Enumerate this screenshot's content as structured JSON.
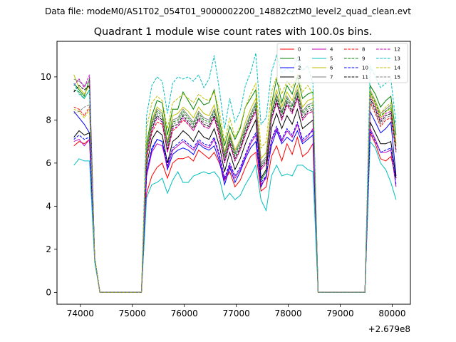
{
  "chart_data": {
    "type": "line",
    "suptitle": "Data file: modeM0/AS1T02_054T01_9000002200_14882cztM0_level2_quad_clean.evt",
    "title": "Quadrant 1 module wise count rates with 100.0s bins.",
    "offset_label": "+2.679e8",
    "xlabel": "",
    "ylabel": "",
    "xlim": [
      73550,
      80350
    ],
    "ylim": [
      -0.55,
      11.65
    ],
    "x_ticks": [
      74000,
      75000,
      76000,
      77000,
      78000,
      79000,
      80000
    ],
    "y_ticks": [
      0,
      2,
      4,
      6,
      8,
      10
    ],
    "legend_position": "top-right",
    "grid": false,
    "x": [
      73875,
      73975,
      74075,
      74175,
      74275,
      74375,
      75175,
      75275,
      75375,
      75475,
      75575,
      75675,
      75775,
      75875,
      75975,
      76075,
      76175,
      76275,
      76375,
      76475,
      76575,
      76675,
      76775,
      76875,
      76975,
      77075,
      77175,
      77275,
      77375,
      77475,
      77575,
      77675,
      77775,
      77875,
      77975,
      78075,
      78175,
      78275,
      78375,
      78475,
      78575,
      78675,
      79475,
      79575,
      79675,
      79775,
      79875,
      79975,
      80075
    ],
    "series": [
      {
        "name": "0",
        "color": "#ff0000",
        "dash": "solid",
        "values": [
          6.8,
          7.0,
          6.9,
          7.1,
          1.6,
          0,
          0,
          4.6,
          5.4,
          5.8,
          6.0,
          5.3,
          6.0,
          6.2,
          6.2,
          6.3,
          6.1,
          6.6,
          6.4,
          6.2,
          6.5,
          6.0,
          5.2,
          5.6,
          4.9,
          5.2,
          5.8,
          6.3,
          6.5,
          4.7,
          4.9,
          6.3,
          6.8,
          6.1,
          6.9,
          6.4,
          7.2,
          6.3,
          6.5,
          6.9,
          0,
          0,
          0,
          7.4,
          6.9,
          6.2,
          6.1,
          6.3,
          5.3
        ]
      },
      {
        "name": "1",
        "color": "#008000",
        "dash": "solid",
        "values": [
          9.7,
          9.4,
          9.1,
          9.9,
          1.6,
          0,
          0,
          6.9,
          8.2,
          8.9,
          8.8,
          7.3,
          8.5,
          8.5,
          9.3,
          8.9,
          8.5,
          9.0,
          8.7,
          8.8,
          9.4,
          8.0,
          6.8,
          7.7,
          7.1,
          7.6,
          8.6,
          9.0,
          9.4,
          5.2,
          5.6,
          8.7,
          9.9,
          8.8,
          9.6,
          9.2,
          10.0,
          9.0,
          9.2,
          9.3,
          0,
          0,
          0,
          9.6,
          9.2,
          8.6,
          8.9,
          9.1,
          7.3
        ]
      },
      {
        "name": "2",
        "color": "#0000ff",
        "dash": "solid",
        "values": [
          8.4,
          8.1,
          7.8,
          7.4,
          1.6,
          0,
          0,
          5.6,
          6.6,
          7.1,
          7.0,
          5.7,
          6.4,
          6.6,
          6.7,
          6.6,
          6.4,
          6.9,
          6.7,
          6.6,
          6.8,
          6.1,
          5.0,
          5.8,
          5.1,
          5.6,
          6.2,
          6.7,
          7.0,
          4.9,
          5.4,
          6.8,
          7.5,
          6.9,
          7.2,
          7.0,
          7.5,
          6.9,
          7.1,
          7.3,
          0,
          0,
          0,
          8.4,
          7.9,
          7.4,
          7.6,
          7.9,
          5.4
        ]
      },
      {
        "name": "3",
        "color": "#000000",
        "dash": "solid",
        "values": [
          7.2,
          7.5,
          7.3,
          7.4,
          1.6,
          0,
          0,
          5.9,
          7.1,
          7.5,
          7.3,
          6.0,
          7.0,
          7.2,
          7.5,
          7.3,
          7.0,
          7.5,
          7.2,
          7.1,
          7.6,
          6.8,
          5.6,
          6.5,
          5.7,
          6.2,
          6.9,
          7.5,
          8.0,
          5.3,
          5.7,
          7.6,
          8.3,
          7.6,
          8.2,
          7.8,
          8.5,
          7.6,
          7.8,
          8.0,
          0,
          0,
          0,
          7.9,
          7.4,
          6.9,
          6.9,
          7.0,
          5.3
        ]
      },
      {
        "name": "4",
        "color": "#bf00bf",
        "dash": "solid",
        "values": [
          7.0,
          7.1,
          6.8,
          7.1,
          1.6,
          0,
          0,
          5.4,
          6.5,
          6.9,
          6.8,
          5.8,
          6.6,
          6.8,
          7.0,
          6.8,
          6.6,
          7.0,
          6.8,
          6.7,
          7.1,
          6.3,
          5.2,
          5.9,
          5.3,
          5.7,
          6.3,
          6.9,
          7.3,
          5.0,
          5.3,
          7.0,
          7.6,
          7.0,
          7.5,
          7.2,
          7.8,
          7.0,
          7.2,
          7.6,
          0,
          0,
          0,
          7.6,
          7.1,
          6.5,
          6.5,
          6.6,
          4.9
        ]
      },
      {
        "name": "5",
        "color": "#00bfbf",
        "dash": "solid",
        "values": [
          5.9,
          6.2,
          6.1,
          6.1,
          1.4,
          0,
          0,
          4.4,
          5.0,
          5.1,
          5.3,
          4.6,
          5.2,
          5.6,
          5.1,
          5.1,
          5.4,
          5.5,
          5.6,
          5.5,
          5.6,
          5.3,
          4.3,
          4.6,
          4.3,
          4.5,
          5.0,
          5.4,
          5.9,
          4.3,
          3.8,
          5.4,
          5.9,
          5.4,
          5.5,
          5.4,
          5.9,
          5.9,
          5.7,
          5.6,
          0,
          0,
          0,
          7.0,
          6.7,
          6.0,
          5.7,
          5.1,
          4.3
        ]
      },
      {
        "name": "6",
        "color": "#bfbf00",
        "dash": "solid",
        "values": [
          10.1,
          9.5,
          9.2,
          9.6,
          1.6,
          0,
          0,
          6.8,
          8.0,
          8.6,
          8.4,
          7.0,
          8.2,
          8.3,
          8.6,
          8.4,
          8.1,
          8.6,
          8.3,
          8.2,
          8.7,
          7.8,
          6.5,
          7.4,
          6.6,
          7.1,
          7.9,
          8.5,
          9.0,
          6.2,
          6.5,
          8.6,
          9.4,
          8.6,
          9.3,
          8.9,
          9.6,
          8.6,
          8.9,
          9.0,
          0,
          0,
          0,
          9.2,
          8.7,
          8.1,
          8.4,
          8.5,
          6.8
        ]
      },
      {
        "name": "7",
        "color": "#808080",
        "dash": "solid",
        "values": [
          9.9,
          9.8,
          9.6,
          9.8,
          1.6,
          0,
          0,
          6.7,
          7.9,
          8.5,
          8.3,
          6.9,
          8.0,
          8.1,
          8.5,
          8.2,
          7.9,
          8.4,
          8.1,
          8.0,
          8.5,
          7.7,
          6.4,
          7.3,
          6.5,
          7.0,
          7.7,
          8.3,
          8.8,
          6.0,
          6.3,
          8.4,
          9.2,
          8.4,
          9.1,
          8.7,
          9.4,
          8.4,
          8.7,
          8.8,
          0,
          0,
          0,
          9.4,
          8.9,
          8.3,
          8.5,
          8.7,
          6.9
        ]
      },
      {
        "name": "8",
        "color": "#ff0000",
        "dash": "dashed",
        "values": [
          8.6,
          8.5,
          8.2,
          8.6,
          1.6,
          0,
          0,
          6.2,
          7.4,
          7.9,
          7.8,
          6.5,
          7.5,
          7.7,
          8.0,
          7.8,
          7.5,
          8.0,
          7.7,
          7.6,
          8.1,
          7.2,
          6.0,
          6.9,
          6.1,
          6.6,
          7.3,
          7.9,
          8.4,
          5.7,
          6.0,
          8.0,
          8.8,
          8.0,
          8.7,
          8.3,
          9.0,
          8.0,
          8.3,
          8.4,
          0,
          0,
          0,
          8.8,
          8.3,
          7.7,
          8.0,
          8.1,
          6.5
        ]
      },
      {
        "name": "9",
        "color": "#008000",
        "dash": "dashed",
        "values": [
          9.4,
          9.3,
          9.0,
          9.4,
          1.6,
          0,
          0,
          6.6,
          7.8,
          8.4,
          8.2,
          6.8,
          7.9,
          8.0,
          8.4,
          8.1,
          7.8,
          8.3,
          8.0,
          7.9,
          8.4,
          7.6,
          6.3,
          7.2,
          6.4,
          6.9,
          7.6,
          8.2,
          8.7,
          5.9,
          6.2,
          8.3,
          9.1,
          8.3,
          9.0,
          8.6,
          9.3,
          8.3,
          8.6,
          8.7,
          0,
          0,
          0,
          9.3,
          8.8,
          8.2,
          8.4,
          8.6,
          6.7
        ]
      },
      {
        "name": "10",
        "color": "#0000ff",
        "dash": "dashed",
        "values": [
          7.1,
          7.3,
          7.1,
          7.2,
          1.6,
          0,
          0,
          5.6,
          6.7,
          7.1,
          7.0,
          5.9,
          6.7,
          6.9,
          7.1,
          6.9,
          6.7,
          7.1,
          6.9,
          6.8,
          7.2,
          6.4,
          5.3,
          6.0,
          5.4,
          5.8,
          6.4,
          7.0,
          7.4,
          5.1,
          5.4,
          7.1,
          7.7,
          7.1,
          7.6,
          7.3,
          7.9,
          7.1,
          7.3,
          7.5,
          0,
          0,
          0,
          7.5,
          7.0,
          6.5,
          6.6,
          6.7,
          5.0
        ]
      },
      {
        "name": "11",
        "color": "#000000",
        "dash": "dashed",
        "values": [
          9.3,
          9.6,
          9.4,
          9.6,
          1.6,
          0,
          0,
          6.4,
          7.6,
          8.2,
          8.0,
          6.6,
          7.7,
          7.8,
          8.2,
          7.9,
          7.6,
          8.1,
          7.8,
          7.7,
          8.2,
          7.4,
          6.1,
          7.0,
          6.2,
          6.7,
          7.4,
          8.0,
          8.5,
          5.8,
          6.1,
          8.1,
          8.9,
          8.1,
          8.8,
          8.4,
          9.1,
          8.1,
          8.4,
          8.5,
          0,
          0,
          0,
          9.0,
          8.5,
          7.9,
          8.2,
          8.3,
          6.6
        ]
      },
      {
        "name": "12",
        "color": "#bf00bf",
        "dash": "dashed",
        "values": [
          9.6,
          9.9,
          9.5,
          10.1,
          1.6,
          0,
          0,
          6.3,
          7.5,
          8.1,
          7.9,
          6.5,
          7.6,
          7.7,
          8.1,
          7.8,
          7.5,
          8.0,
          7.7,
          7.6,
          8.1,
          7.3,
          6.0,
          6.9,
          6.1,
          6.6,
          7.3,
          7.9,
          8.4,
          5.7,
          6.0,
          8.0,
          8.8,
          8.0,
          8.7,
          8.3,
          9.0,
          8.0,
          8.3,
          8.4,
          0,
          0,
          0,
          9.1,
          8.6,
          8.0,
          8.3,
          8.4,
          6.6
        ]
      },
      {
        "name": "13",
        "color": "#00bfbf",
        "dash": "dashed",
        "values": [
          9.7,
          9.2,
          9.0,
          9.4,
          1.6,
          0,
          0,
          8.2,
          9.6,
          10.0,
          9.8,
          8.3,
          9.7,
          10.0,
          9.9,
          10.0,
          9.8,
          10.1,
          9.5,
          9.9,
          11.0,
          9.4,
          7.6,
          9.0,
          7.9,
          8.4,
          9.6,
          10.2,
          11.1,
          7.8,
          8.1,
          10.2,
          11.0,
          10.2,
          10.4,
          10.2,
          10.9,
          10.3,
          10.5,
          9.7,
          0,
          0,
          0,
          10.5,
          10.0,
          9.5,
          9.7,
          9.9,
          7.8
        ]
      },
      {
        "name": "14",
        "color": "#bfbf00",
        "dash": "dashed",
        "values": [
          8.5,
          8.4,
          8.1,
          8.5,
          1.6,
          0,
          0,
          7.6,
          8.8,
          9.1,
          8.9,
          7.6,
          8.8,
          9.0,
          9.2,
          9.0,
          8.8,
          9.2,
          9.0,
          8.9,
          9.3,
          8.4,
          7.0,
          8.1,
          7.2,
          7.7,
          8.6,
          9.2,
          9.7,
          6.7,
          7.0,
          9.3,
          10.0,
          9.2,
          9.8,
          9.5,
          10.1,
          9.3,
          9.6,
          9.2,
          0,
          0,
          0,
          9.4,
          8.9,
          8.3,
          8.6,
          8.8,
          6.9
        ]
      },
      {
        "name": "15",
        "color": "#808080",
        "dash": "dashed",
        "values": [
          8.3,
          8.4,
          8.6,
          8.7,
          1.6,
          0,
          0,
          6.5,
          7.7,
          8.3,
          8.1,
          6.7,
          7.8,
          7.9,
          8.3,
          8.0,
          7.7,
          8.2,
          7.9,
          7.8,
          8.3,
          7.5,
          6.2,
          7.1,
          6.3,
          6.8,
          7.5,
          8.1,
          8.6,
          5.9,
          6.2,
          8.2,
          9.0,
          8.2,
          8.9,
          8.5,
          9.2,
          8.2,
          8.5,
          8.6,
          0,
          0,
          0,
          8.9,
          8.4,
          7.8,
          8.1,
          8.2,
          6.5
        ]
      }
    ]
  }
}
